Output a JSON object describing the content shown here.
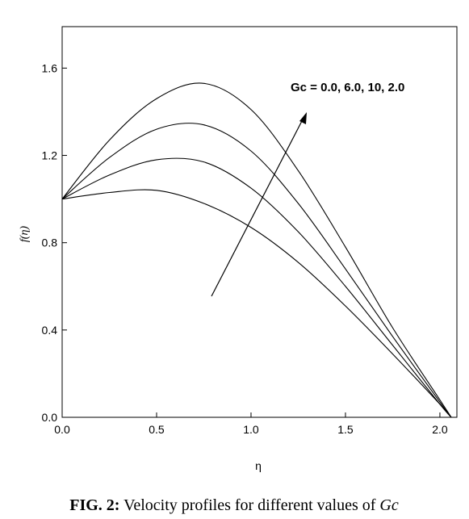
{
  "chart_data": {
    "type": "line",
    "annotation": "Gc = 0.0, 6.0, 10, 2.0",
    "xlabel": "η",
    "ylabel": "f(η)",
    "caption_label": "FIG. 2:",
    "caption_text": "Velocity profiles for different values of",
    "caption_symbol": "Gc",
    "x": [
      0,
      0.25,
      0.5,
      0.75,
      1.0,
      1.25,
      1.5,
      1.75,
      2.0,
      2.06
    ],
    "series": [
      {
        "color": "#000000",
        "values": [
          1.0,
          1.03,
          1.04,
          0.98,
          0.87,
          0.71,
          0.51,
          0.29,
          0.06,
          0
        ]
      },
      {
        "color": "#000000",
        "values": [
          1.0,
          1.11,
          1.18,
          1.17,
          1.05,
          0.85,
          0.6,
          0.33,
          0.06,
          0
        ]
      },
      {
        "color": "#000000",
        "values": [
          1.0,
          1.19,
          1.32,
          1.34,
          1.22,
          0.98,
          0.68,
          0.37,
          0.07,
          0
        ]
      },
      {
        "color": "#000000",
        "values": [
          1.0,
          1.27,
          1.46,
          1.53,
          1.41,
          1.13,
          0.78,
          0.41,
          0.08,
          0
        ]
      }
    ],
    "xlim": [
      0,
      2.09
    ],
    "ylim": [
      0,
      1.79
    ],
    "xticks": [
      {
        "value": 0,
        "label": "0.0"
      },
      0.5,
      {
        "value": 1,
        "label": "1.0"
      },
      1.5,
      {
        "value": 2,
        "label": "2.0"
      }
    ],
    "yticks": [
      {
        "value": 0,
        "label": "0.0"
      },
      0.4,
      0.8,
      1.2,
      1.6
    ],
    "grid": false
  }
}
